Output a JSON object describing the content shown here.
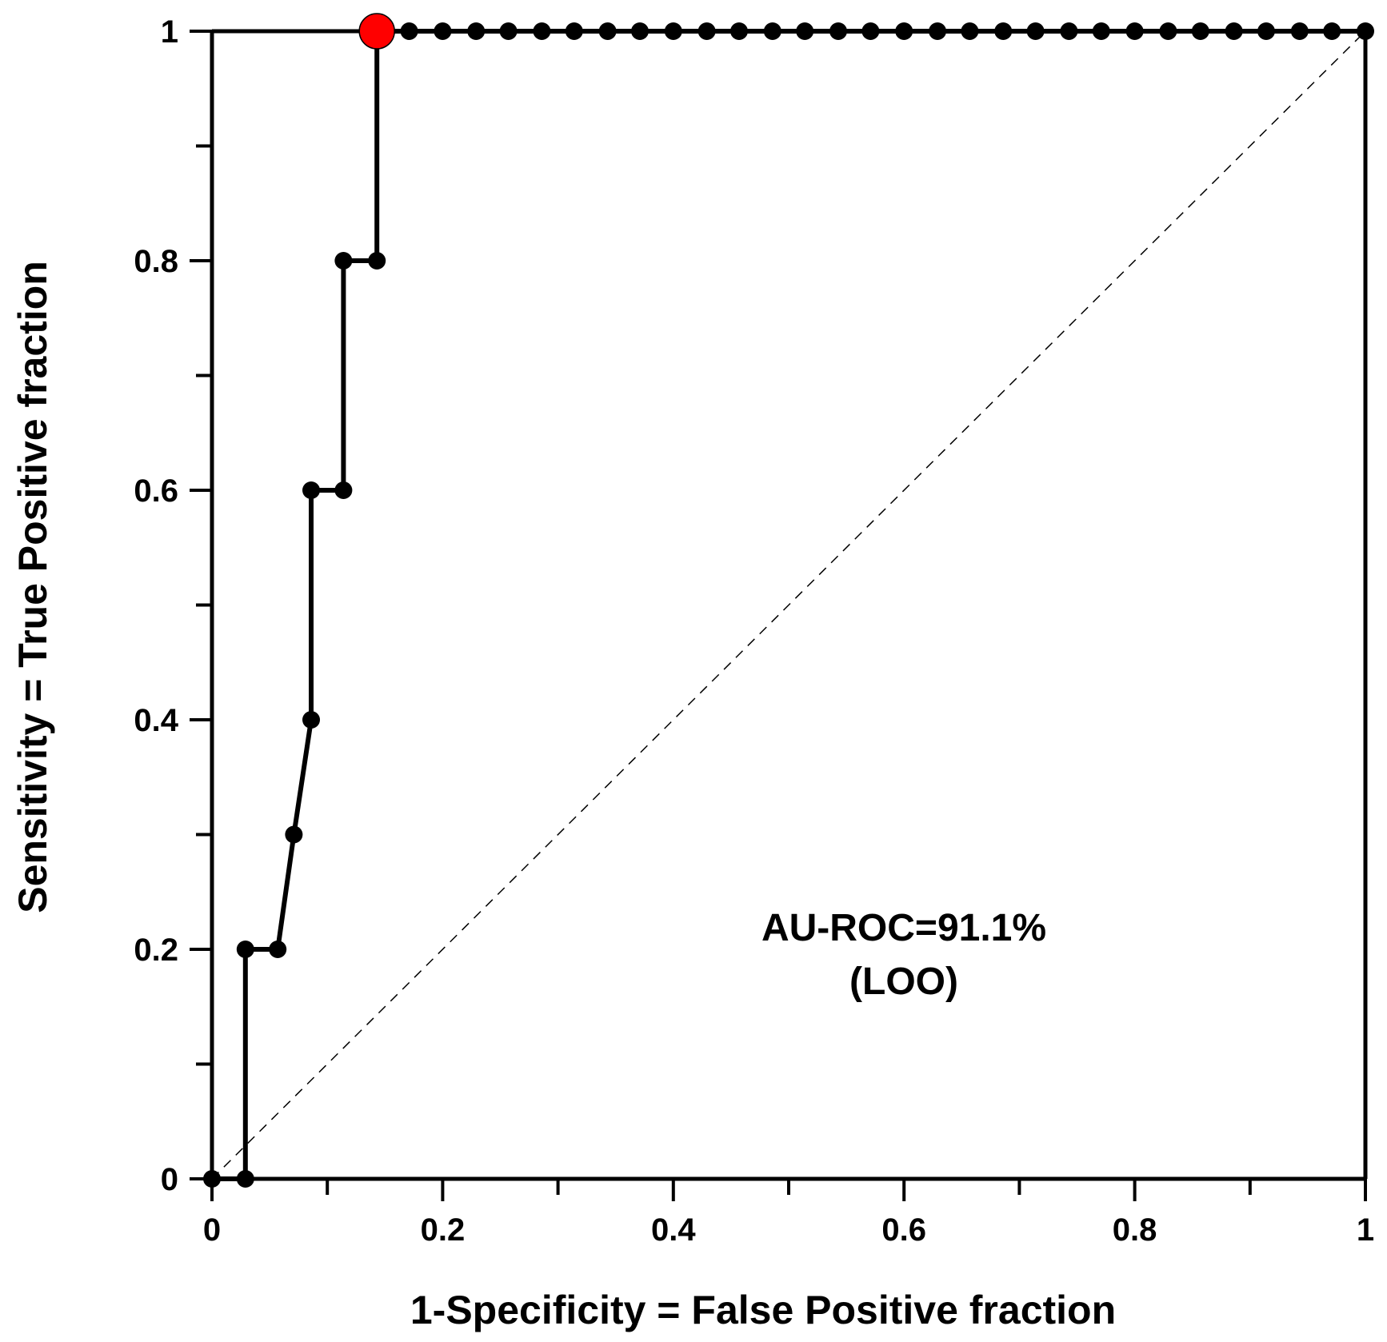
{
  "chart_data": {
    "type": "line",
    "title": "",
    "xlabel": "1-Specificity = False Positive fraction",
    "ylabel": "Sensitivity = True Positive fraction",
    "xlim": [
      0,
      1
    ],
    "ylim": [
      0,
      1
    ],
    "x_ticks": [
      "0",
      "0.2",
      "0.4",
      "0.6",
      "0.8",
      "1"
    ],
    "x_tick_values": [
      0,
      0.2,
      0.4,
      0.6,
      0.8,
      1
    ],
    "y_ticks": [
      "0",
      "0.2",
      "0.4",
      "0.6",
      "0.8",
      "1"
    ],
    "y_tick_values": [
      0,
      0.2,
      0.4,
      0.6,
      0.8,
      1
    ],
    "grid": false,
    "legend": "none",
    "series": [
      {
        "color": "#000000",
        "points": [
          [
            0,
            0
          ],
          [
            0.029,
            0
          ],
          [
            0.029,
            0.2
          ],
          [
            0.057,
            0.2
          ],
          [
            0.071,
            0.3
          ],
          [
            0.086,
            0.4
          ],
          [
            0.086,
            0.6
          ],
          [
            0.114,
            0.6
          ],
          [
            0.114,
            0.8
          ],
          [
            0.143,
            0.8
          ],
          [
            0.143,
            1
          ],
          [
            0.171,
            1
          ],
          [
            0.2,
            1
          ],
          [
            0.229,
            1
          ],
          [
            0.257,
            1
          ],
          [
            0.286,
            1
          ],
          [
            0.314,
            1
          ],
          [
            0.343,
            1
          ],
          [
            0.371,
            1
          ],
          [
            0.4,
            1
          ],
          [
            0.429,
            1
          ],
          [
            0.457,
            1
          ],
          [
            0.486,
            1
          ],
          [
            0.514,
            1
          ],
          [
            0.543,
            1
          ],
          [
            0.571,
            1
          ],
          [
            0.6,
            1
          ],
          [
            0.629,
            1
          ],
          [
            0.657,
            1
          ],
          [
            0.686,
            1
          ],
          [
            0.714,
            1
          ],
          [
            0.743,
            1
          ],
          [
            0.771,
            1
          ],
          [
            0.8,
            1
          ],
          [
            0.829,
            1
          ],
          [
            0.857,
            1
          ],
          [
            0.886,
            1
          ],
          [
            0.914,
            1
          ],
          [
            0.943,
            1
          ],
          [
            0.971,
            1
          ],
          [
            1,
            1
          ]
        ]
      }
    ],
    "highlight_point": {
      "x": 0.143,
      "y": 1,
      "color": "#ff0000"
    },
    "reference_line": {
      "from": [
        0,
        0
      ],
      "to": [
        1,
        1
      ],
      "style": "dashed",
      "color": "#000000"
    },
    "annotations": [
      "AU-ROC=91.1%",
      "(LOO)"
    ]
  }
}
